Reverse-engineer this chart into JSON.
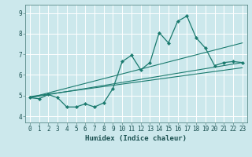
{
  "title": "",
  "xlabel": "Humidex (Indice chaleur)",
  "background_color": "#cce8ec",
  "grid_color": "#ffffff",
  "line_color": "#1a7a6e",
  "xlim": [
    -0.5,
    23.5
  ],
  "ylim": [
    3.7,
    9.4
  ],
  "yticks": [
    4,
    5,
    6,
    7,
    8,
    9
  ],
  "xticks": [
    0,
    1,
    2,
    3,
    4,
    5,
    6,
    7,
    8,
    9,
    10,
    11,
    12,
    13,
    14,
    15,
    16,
    17,
    18,
    19,
    20,
    21,
    22,
    23
  ],
  "main_x": [
    0,
    1,
    2,
    3,
    4,
    5,
    6,
    7,
    8,
    9,
    10,
    11,
    12,
    13,
    14,
    15,
    16,
    17,
    18,
    19,
    20,
    21,
    22,
    23
  ],
  "main_y": [
    4.9,
    4.85,
    5.05,
    4.9,
    4.45,
    4.45,
    4.6,
    4.45,
    4.65,
    5.35,
    6.65,
    6.95,
    6.25,
    6.6,
    8.05,
    7.55,
    8.6,
    8.85,
    7.8,
    7.3,
    6.45,
    6.6,
    6.65,
    6.6
  ],
  "line1_x": [
    0,
    23
  ],
  "line1_y": [
    4.9,
    6.6
  ],
  "line2_x": [
    0,
    23
  ],
  "line2_y": [
    4.9,
    7.55
  ],
  "line3_x": [
    0,
    23
  ],
  "line3_y": [
    4.95,
    6.35
  ],
  "spine_color": "#5a8a88",
  "tick_color": "#1a5050",
  "xlabel_fontsize": 6.5,
  "tick_fontsize": 5.5
}
